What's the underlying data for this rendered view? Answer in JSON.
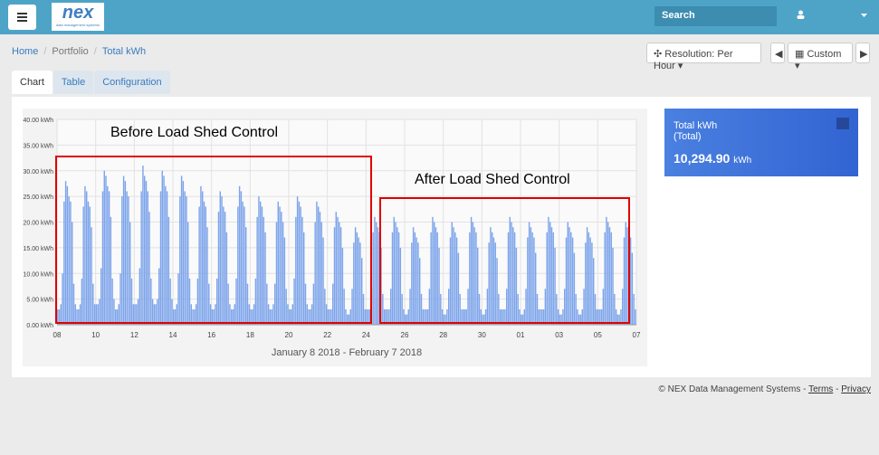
{
  "header": {
    "search": "Search"
  },
  "logo": {
    "name": "nex",
    "tagline": "data management systems"
  },
  "breadcrumb": [
    "Home",
    "Portfolio",
    "Total kWh"
  ],
  "toolbar": {
    "resolution": "Resolution: Per Hour",
    "range": "Custom"
  },
  "tabs": [
    "Chart",
    "Table",
    "Configuration"
  ],
  "card": {
    "title": "Total kWh",
    "subtitle": "(Total)",
    "value": "10,294.90",
    "unit": "kWh"
  },
  "footer": {
    "copyright": "© NEX Data Management Systems -",
    "terms": "Terms",
    "separator": "-",
    "privacy": "Privacy"
  },
  "chart_data": {
    "type": "bar",
    "x_label": "January 8 2018 - February 7 2018",
    "annotations": [
      "Before Load Shed Control",
      "After Load Shed Control"
    ],
    "color": "#7da4ea",
    "annotation_color": "#e00000",
    "grid": true,
    "ylim": [
      0,
      40
    ],
    "yticks": [
      {
        "value": 0,
        "label": "0.00 kWh"
      },
      {
        "value": 5,
        "label": "5.00 kWh"
      },
      {
        "value": 10,
        "label": "10.00 kWh"
      },
      {
        "value": 15,
        "label": "15.00 kWh"
      },
      {
        "value": 20,
        "label": "20.00 kWh"
      },
      {
        "value": 25,
        "label": "25.00 kWh"
      },
      {
        "value": 30,
        "label": "30.00 kWh"
      },
      {
        "value": 35,
        "label": "35.00 kWh"
      },
      {
        "value": 40,
        "label": "40.00 kWh"
      }
    ],
    "xticks": [
      "08",
      "10",
      "12",
      "14",
      "16",
      "18",
      "20",
      "22",
      "24",
      "26",
      "28",
      "30",
      "01",
      "03",
      "05",
      "07"
    ],
    "values": [
      3,
      3,
      4,
      10,
      24,
      28,
      27,
      25,
      24,
      20,
      8,
      4,
      3,
      3,
      4,
      9,
      23,
      27,
      26,
      24,
      23,
      19,
      8,
      4,
      4,
      4,
      5,
      11,
      26,
      30,
      29,
      27,
      26,
      21,
      9,
      5,
      3,
      3,
      4,
      10,
      25,
      29,
      28,
      26,
      25,
      20,
      9,
      4,
      4,
      4,
      5,
      11,
      26,
      31,
      29,
      28,
      26,
      22,
      9,
      5,
      4,
      4,
      5,
      11,
      26,
      30,
      29,
      27,
      26,
      21,
      9,
      5,
      3,
      3,
      4,
      10,
      25,
      29,
      28,
      26,
      25,
      20,
      9,
      4,
      3,
      3,
      4,
      9,
      23,
      27,
      26,
      24,
      23,
      19,
      8,
      4,
      3,
      3,
      4,
      9,
      22,
      26,
      25,
      23,
      22,
      18,
      8,
      4,
      3,
      3,
      4,
      9,
      23,
      27,
      26,
      24,
      23,
      19,
      8,
      4,
      3,
      3,
      4,
      9,
      21,
      25,
      24,
      23,
      21,
      18,
      8,
      4,
      3,
      3,
      4,
      8,
      20,
      24,
      23,
      22,
      20,
      17,
      7,
      4,
      3,
      3,
      4,
      9,
      21,
      25,
      24,
      23,
      21,
      18,
      8,
      4,
      3,
      3,
      4,
      8,
      20,
      24,
      23,
      22,
      20,
      17,
      7,
      4,
      3,
      3,
      3,
      8,
      19,
      22,
      21,
      20,
      19,
      15,
      7,
      3,
      2,
      2,
      3,
      7,
      16,
      19,
      18,
      17,
      16,
      13,
      6,
      3,
      3,
      3,
      3,
      7,
      18,
      21,
      20,
      19,
      18,
      15,
      6,
      3,
      3,
      3,
      3,
      7,
      18,
      21,
      20,
      19,
      18,
      15,
      6,
      3,
      2,
      2,
      3,
      7,
      16,
      19,
      18,
      17,
      16,
      13,
      6,
      3,
      3,
      3,
      3,
      7,
      18,
      21,
      20,
      19,
      18,
      15,
      6,
      3,
      2,
      2,
      3,
      7,
      17,
      20,
      19,
      18,
      17,
      14,
      6,
      3,
      3,
      3,
      3,
      7,
      18,
      21,
      20,
      19,
      18,
      15,
      6,
      3,
      2,
      2,
      3,
      7,
      16,
      19,
      18,
      17,
      16,
      13,
      6,
      3,
      3,
      3,
      3,
      7,
      18,
      21,
      20,
      19,
      18,
      15,
      6,
      3,
      2,
      2,
      3,
      7,
      17,
      20,
      19,
      18,
      17,
      14,
      6,
      3,
      3,
      3,
      3,
      7,
      18,
      21,
      20,
      19,
      18,
      15,
      6,
      3,
      2,
      2,
      3,
      7,
      17,
      20,
      19,
      18,
      17,
      14,
      6,
      3,
      2,
      2,
      3,
      7,
      16,
      19,
      18,
      17,
      16,
      13,
      6,
      3,
      3,
      3,
      3,
      7,
      18,
      21,
      20,
      19,
      18,
      15,
      6,
      3,
      2,
      2,
      3,
      7,
      17,
      20,
      19,
      18,
      17,
      14,
      6,
      3
    ]
  }
}
